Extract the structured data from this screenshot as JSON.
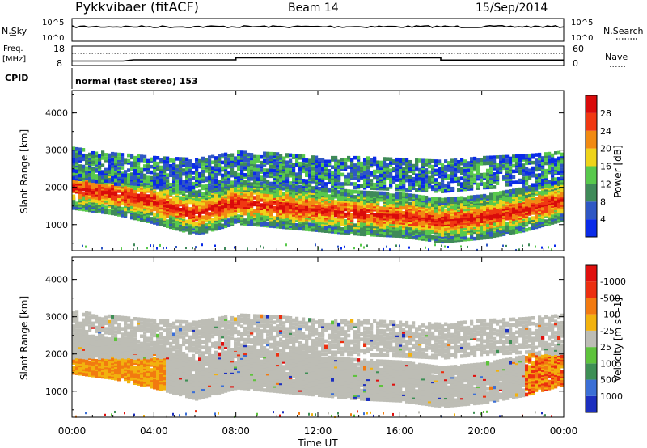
{
  "header": {
    "station": "Pykkvibaer (fitACF)",
    "beam": "Beam 14",
    "date": "15/Sep/2014"
  },
  "noise_panel": {
    "left_label": "N.Sky",
    "right_label": "N.Search",
    "left_ticks": [
      "10^5",
      "10^0"
    ],
    "right_ticks": [
      "10^5",
      "10^0"
    ]
  },
  "freq_panel": {
    "left_label_1": "Freq.",
    "left_label_2": "[MHz]",
    "right_label": "Nave",
    "left_ticks": [
      "18",
      "8"
    ],
    "right_ticks": [
      "60",
      "0"
    ]
  },
  "cpid": {
    "label": "CPID",
    "text": "normal (fast stereo) 153"
  },
  "chart_data": [
    {
      "type": "line",
      "name": "noise",
      "x": [
        0,
        24
      ],
      "series": [
        {
          "name": "N.Sky",
          "values": [
            3.3,
            3.3
          ]
        },
        {
          "name": "N.Search",
          "values": [
            3.4,
            3.4
          ]
        }
      ],
      "ylim": [
        "10^0",
        "10^5"
      ]
    },
    {
      "type": "line",
      "name": "frequency",
      "x": [
        0,
        2.5,
        3.0,
        8.0,
        8.0,
        18.0,
        18.0,
        24
      ],
      "series": [
        {
          "name": "Freq",
          "values": [
            10.3,
            10.3,
            10.9,
            10.9,
            12.0,
            12.0,
            10.8,
            10.8
          ]
        },
        {
          "name": "Nave",
          "values": [
            27,
            27,
            27,
            27,
            27,
            27,
            27,
            27
          ]
        }
      ],
      "ylim": [
        8,
        18
      ]
    },
    {
      "type": "heatmap",
      "name": "power",
      "ylabel": "Slant Range [km]",
      "yticks": [
        "1000",
        "2000",
        "3000",
        "4000"
      ],
      "ylim": [
        300,
        4600
      ],
      "xlim": [
        0,
        24
      ],
      "colorbar": {
        "label": "Power [dB]",
        "ticks": [
          "4",
          "8",
          "12",
          "16",
          "20",
          "24",
          "28"
        ],
        "colors": [
          "#0a2be8",
          "#2f57c4",
          "#3f8a59",
          "#58c94c",
          "#eed31a",
          "#f18a12",
          "#f03812",
          "#d90b0b"
        ]
      },
      "bands": [
        {
          "name": "main echo",
          "x": [
            0,
            2,
            4,
            6,
            8,
            10,
            12,
            14,
            16,
            18,
            20,
            22,
            24
          ],
          "center_km": [
            1950,
            1800,
            1550,
            1250,
            1550,
            1450,
            1350,
            1250,
            1200,
            1050,
            1150,
            1350,
            1650
          ],
          "peak_db": 28
        },
        {
          "name": "upper echo",
          "x": [
            0,
            2,
            4,
            6,
            8,
            10,
            12,
            14,
            16,
            18,
            20,
            22,
            24
          ],
          "center_km": [
            2600,
            2450,
            2350,
            2300,
            2500,
            2450,
            2350,
            2350,
            2300,
            2250,
            2350,
            2400,
            2500
          ],
          "peak_db": 12
        }
      ]
    },
    {
      "type": "heatmap",
      "name": "velocity",
      "ylabel": "Slant Range [km]",
      "xlabel": "Time UT",
      "yticks": [
        "1000",
        "2000",
        "3000",
        "4000"
      ],
      "xticks": [
        "00:00",
        "04:00",
        "08:00",
        "12:00",
        "16:00",
        "20:00",
        "00:00"
      ],
      "xlim": [
        0,
        24
      ],
      "ylim": [
        300,
        4600
      ],
      "colorbar": {
        "label": "Velocity [m s^-1]",
        "ticks": [
          "1000",
          "500",
          "100",
          "25",
          "-25",
          "-100",
          "-500",
          "-1000"
        ],
        "colors": [
          "#1c2fbf",
          "#3b6fd6",
          "#3e8f55",
          "#5ec33c",
          "#bdbdb5",
          "#f2b20e",
          "#f27a10",
          "#ec2f10",
          "#e0100e"
        ]
      },
      "regions": [
        {
          "name": "ground scatter",
          "x_start": 0,
          "x_end": 24,
          "value": "0"
        },
        {
          "name": "early negative",
          "x_start": 0,
          "x_end": 4.5,
          "value": "-100"
        },
        {
          "name": "late negative",
          "x_start": 22,
          "x_end": 24,
          "value": "-500"
        }
      ]
    }
  ]
}
